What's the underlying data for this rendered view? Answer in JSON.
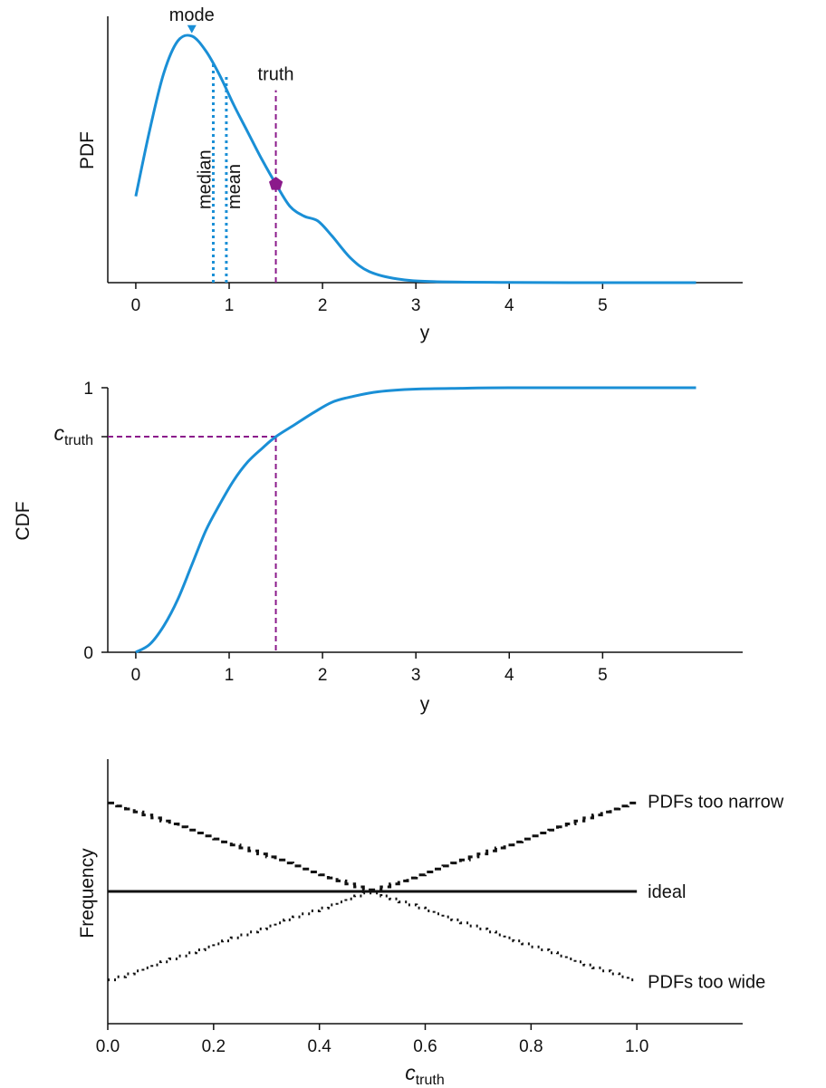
{
  "colors": {
    "curve": "#1a8fd6",
    "truth": "#8b1a8b",
    "mark": "#111111"
  },
  "chart_data": [
    {
      "type": "line",
      "xlabel": "y",
      "ylabel": "PDF",
      "xlim": [
        -0.3,
        6.5
      ],
      "ylim": [
        0,
        1.08
      ],
      "xticks": [
        "0",
        "1",
        "2",
        "3",
        "4",
        "5"
      ],
      "x": [
        0,
        0.15,
        0.3,
        0.45,
        0.6,
        0.75,
        0.9,
        1.05,
        1.2,
        1.35,
        1.5,
        1.65,
        1.8,
        1.95,
        2.1,
        2.3,
        2.5,
        2.8,
        3.2,
        4.0,
        5.0,
        6.0
      ],
      "values": [
        0.35,
        0.62,
        0.85,
        0.98,
        1.0,
        0.94,
        0.84,
        0.72,
        0.61,
        0.5,
        0.4,
        0.31,
        0.27,
        0.25,
        0.19,
        0.1,
        0.045,
        0.015,
        0.004,
        0.001,
        0.0,
        0.0
      ],
      "annotations": {
        "mode": {
          "text": "mode",
          "x": 0.6,
          "y": 1.0
        },
        "median": {
          "text": "median",
          "x": 0.83,
          "y": 0.89
        },
        "mean": {
          "text": "mean",
          "x": 0.97,
          "y": 0.84
        },
        "truth": {
          "text": "truth",
          "x": 1.5,
          "y": 0.4,
          "line_top": 0.78
        }
      }
    },
    {
      "type": "line",
      "xlabel": "y",
      "ylabel": "CDF",
      "xlim": [
        -0.3,
        6.5
      ],
      "ylim": [
        0,
        1
      ],
      "xticks": [
        "0",
        "1",
        "2",
        "3",
        "4",
        "5"
      ],
      "yticks": [
        "0",
        "1"
      ],
      "x": [
        0,
        0.15,
        0.3,
        0.45,
        0.6,
        0.75,
        0.9,
        1.05,
        1.2,
        1.35,
        1.5,
        1.7,
        1.9,
        2.1,
        2.3,
        2.6,
        3.0,
        3.5,
        4.0,
        6.0
      ],
      "values": [
        0.0,
        0.03,
        0.1,
        0.2,
        0.33,
        0.46,
        0.56,
        0.65,
        0.72,
        0.77,
        0.815,
        0.86,
        0.905,
        0.945,
        0.965,
        0.985,
        0.995,
        0.998,
        1.0,
        1.0
      ],
      "truth_x": 1.5,
      "c_truth": 0.815,
      "c_truth_label": {
        "main": "c",
        "sub": "truth"
      }
    },
    {
      "type": "line",
      "xlabel": {
        "main": "c",
        "sub": "truth"
      },
      "ylabel": "Frequency",
      "xlim": [
        0,
        1.2
      ],
      "ylim": [
        0,
        1
      ],
      "xticks": [
        "0.0",
        "0.2",
        "0.4",
        "0.6",
        "0.8",
        "1.0"
      ],
      "step_bins": 60,
      "series": [
        {
          "name": "PDFs too narrow",
          "style": "dashed",
          "x": [
            0,
            0.5,
            1.0
          ],
          "values": [
            0.84,
            0.5,
            0.84
          ]
        },
        {
          "name": "ideal",
          "style": "solid",
          "x": [
            0,
            1.0
          ],
          "values": [
            0.5,
            0.5
          ]
        },
        {
          "name": "PDFs too wide",
          "style": "dotted",
          "x": [
            0,
            0.5,
            1.0
          ],
          "values": [
            0.16,
            0.5,
            0.16
          ]
        }
      ]
    }
  ]
}
